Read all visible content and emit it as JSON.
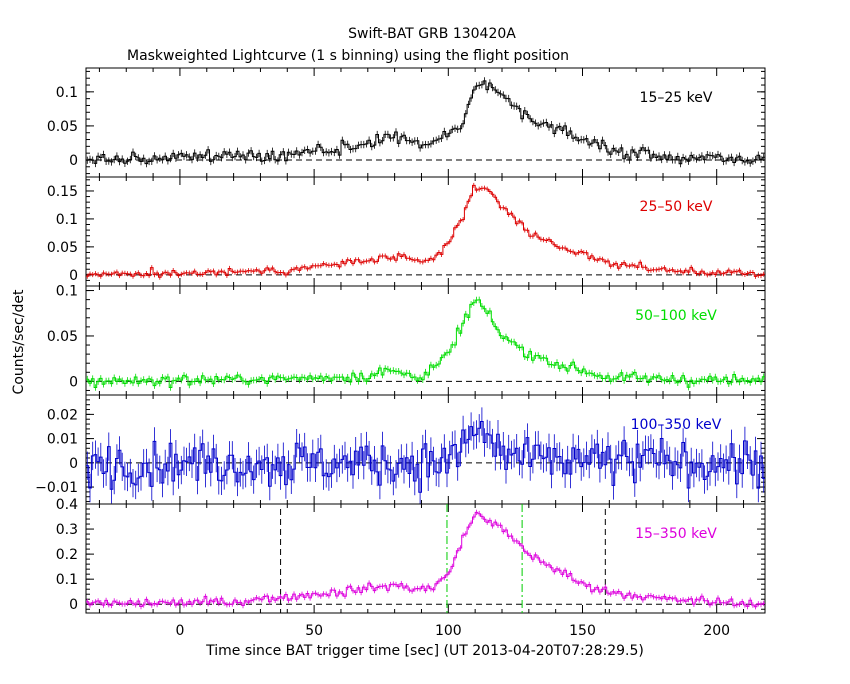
{
  "chart_data": {
    "type": "line",
    "title": "Swift-BAT GRB 130420A",
    "subtitle": "Maskweighted Lightcurve (1 s binning) using the flight position",
    "xlabel": "Time since BAT trigger time [sec] (UT 2013-04-20T07:28:29.5)",
    "ylabel": "Counts/sec/det",
    "xlim": [
      -35,
      218
    ],
    "x_ticks": [
      0,
      50,
      100,
      150,
      200
    ],
    "markers": {
      "black_dashed": [
        37.5,
        158.5
      ],
      "green_dashdot": [
        99.5,
        127.5
      ]
    },
    "panels": [
      {
        "name": "15-25 keV",
        "label": "15–25 keV",
        "color": "#000000",
        "ylim": [
          -0.025,
          0.135
        ],
        "y_ticks": [
          0,
          0.05,
          0.1
        ],
        "y_tick_labels": [
          "0",
          "0.05",
          "0.1"
        ],
        "profile": {
          "x": [
            -35,
            40,
            60,
            75,
            80,
            90,
            95,
            100,
            105,
            110,
            113,
            120,
            130,
            150,
            160,
            180,
            218
          ],
          "y": [
            0.0,
            0.008,
            0.018,
            0.028,
            0.035,
            0.022,
            0.025,
            0.04,
            0.05,
            0.11,
            0.115,
            0.095,
            0.06,
            0.03,
            0.015,
            0.005,
            0.0
          ]
        },
        "noise": 0.006
      },
      {
        "name": "25-50 keV",
        "label": "25–50 keV",
        "color": "#dd0000",
        "ylim": [
          -0.02,
          0.175
        ],
        "y_ticks": [
          0,
          0.05,
          0.1,
          0.15
        ],
        "y_tick_labels": [
          "0",
          "0.05",
          "0.1",
          "0.15"
        ],
        "profile": {
          "x": [
            -35,
            40,
            60,
            75,
            78,
            90,
            95,
            100,
            105,
            110,
            112,
            120,
            130,
            150,
            160,
            180,
            218
          ],
          "y": [
            0.0,
            0.008,
            0.02,
            0.028,
            0.032,
            0.022,
            0.03,
            0.055,
            0.1,
            0.16,
            0.158,
            0.125,
            0.075,
            0.035,
            0.022,
            0.008,
            0.0
          ]
        },
        "noise": 0.005
      },
      {
        "name": "50-100 keV",
        "label": "50–100 keV",
        "color": "#00dd00",
        "ylim": [
          -0.015,
          0.105
        ],
        "y_ticks": [
          0,
          0.05,
          0.1
        ],
        "y_tick_labels": [
          "0",
          "0.05",
          "0.1"
        ],
        "profile": {
          "x": [
            -35,
            40,
            70,
            78,
            90,
            95,
            100,
            105,
            110,
            112,
            120,
            130,
            140,
            150,
            160,
            218
          ],
          "y": [
            0.0,
            0.003,
            0.006,
            0.012,
            0.005,
            0.015,
            0.03,
            0.06,
            0.09,
            0.085,
            0.05,
            0.03,
            0.02,
            0.012,
            0.004,
            0.0
          ]
        },
        "noise": 0.004
      },
      {
        "name": "100-350 keV",
        "label": "100–350 keV",
        "color": "#0000cc",
        "ylim": [
          -0.017,
          0.028
        ],
        "y_ticks": [
          -0.01,
          0,
          0.01,
          0.02
        ],
        "y_tick_labels": [
          "−0.01",
          "0",
          "0.01",
          "0.02"
        ],
        "profile": {
          "x": [
            -35,
            100,
            105,
            110,
            115,
            120,
            130,
            218
          ],
          "y": [
            0.0,
            0.0,
            0.006,
            0.014,
            0.01,
            0.004,
            0.001,
            0.0
          ]
        },
        "noise": 0.0065
      },
      {
        "name": "15-350 keV",
        "label": "15–350 keV",
        "color": "#dd00dd",
        "ylim": [
          -0.035,
          0.4
        ],
        "y_ticks": [
          0,
          0.1,
          0.2,
          0.3,
          0.4
        ],
        "y_tick_labels": [
          "0",
          "0.1",
          "0.2",
          "0.3",
          "0.4"
        ],
        "profile": {
          "x": [
            -35,
            20,
            40,
            60,
            75,
            80,
            90,
            95,
            100,
            105,
            110,
            113,
            120,
            130,
            150,
            160,
            180,
            218
          ],
          "y": [
            0.0,
            0.01,
            0.03,
            0.05,
            0.07,
            0.075,
            0.06,
            0.07,
            0.12,
            0.25,
            0.36,
            0.35,
            0.3,
            0.2,
            0.08,
            0.05,
            0.02,
            0.0
          ]
        },
        "noise": 0.012,
        "show_markers": true
      }
    ]
  }
}
